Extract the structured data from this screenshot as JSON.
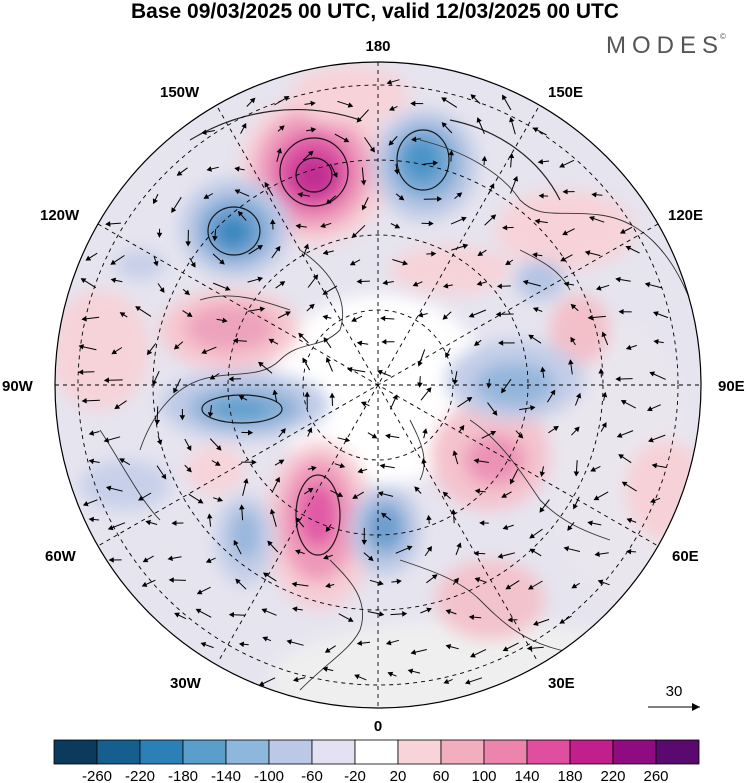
{
  "title": "Base 09/03/2025 00 UTC, valid 12/03/2025 00 UTC",
  "logo": "MODES",
  "logo_mark": "©",
  "longitude_labels": {
    "top": "180",
    "bottom": "0",
    "left": "90W",
    "right": "90E",
    "upper_left_1": "150W",
    "upper_left_2": "120W",
    "upper_right_1": "150E",
    "upper_right_2": "120E",
    "lower_left_1": "60W",
    "lower_left_2": "30W",
    "lower_right_1": "60E",
    "lower_right_2": "30E"
  },
  "reference_vector_label": "30",
  "colorbar": {
    "tick_labels": [
      "-260",
      "-220",
      "-180",
      "-140",
      "-100",
      "-60",
      "-20",
      "20",
      "60",
      "100",
      "140",
      "180",
      "220",
      "260"
    ],
    "colors": [
      "#0b3a5c",
      "#155f8f",
      "#2b80b8",
      "#5a9fcc",
      "#8db7dc",
      "#bcc9e6",
      "#e4e2f2",
      "#ffffff",
      "#f8d4d8",
      "#f2aebf",
      "#ec84ad",
      "#df4e9f",
      "#c01f8c",
      "#8f0c80",
      "#5a0a6e"
    ]
  },
  "anomaly_features": [
    {
      "kind": "positive",
      "intensity": "strong",
      "color": "#c63aa0"
    },
    {
      "kind": "negative",
      "intensity": "strong",
      "color": "#3f8bc4"
    }
  ]
}
